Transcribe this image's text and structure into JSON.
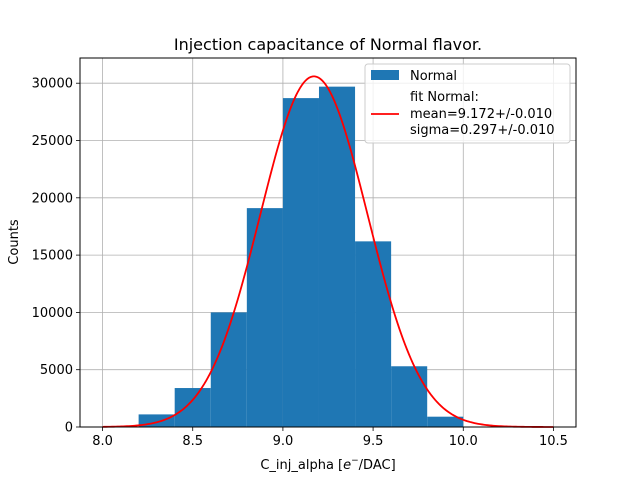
{
  "chart_data": {
    "type": "histogram",
    "title": "Injection capacitance of Normal flavor.",
    "xlabel": "C_inj_alpha [e⁻/DAC]",
    "xlabel_parts": {
      "prefix": "C_inj_alpha [",
      "symbol": "e",
      "superscript": "−",
      "suffix": "/DAC]"
    },
    "ylabel": "Counts",
    "xlim": [
      7.875,
      10.625
    ],
    "ylim": [
      0,
      32200
    ],
    "xticks": [
      8.0,
      8.5,
      9.0,
      9.5,
      10.0,
      10.5
    ],
    "xtick_labels": [
      "8.0",
      "8.5",
      "9.0",
      "9.5",
      "10.0",
      "10.5"
    ],
    "yticks": [
      0,
      5000,
      10000,
      15000,
      20000,
      25000,
      30000
    ],
    "ytick_labels": [
      "0",
      "5000",
      "10000",
      "15000",
      "20000",
      "25000",
      "30000"
    ],
    "grid": true,
    "legend_position": "top-right",
    "series": [
      {
        "name": "Normal",
        "kind": "histogram",
        "color": "#1f77b4",
        "bins": [
          {
            "x0": 8.2,
            "x1": 8.4,
            "count": 1100
          },
          {
            "x0": 8.4,
            "x1": 8.6,
            "count": 3400
          },
          {
            "x0": 8.6,
            "x1": 8.8,
            "count": 10000
          },
          {
            "x0": 8.8,
            "x1": 9.0,
            "count": 19100
          },
          {
            "x0": 9.0,
            "x1": 9.2,
            "count": 28700
          },
          {
            "x0": 9.2,
            "x1": 9.4,
            "count": 29700
          },
          {
            "x0": 9.4,
            "x1": 9.6,
            "count": 16200
          },
          {
            "x0": 9.6,
            "x1": 9.8,
            "count": 5300
          },
          {
            "x0": 9.8,
            "x1": 10.0,
            "count": 900
          }
        ]
      },
      {
        "name": "fit Normal:",
        "kind": "gaussian-fit",
        "color": "#ff0000",
        "mean": 9.172,
        "sigma": 0.297,
        "amplitude": 30600,
        "x_range": [
          8.0,
          10.5
        ]
      }
    ],
    "legend": [
      {
        "label": "Normal",
        "series": 0
      },
      {
        "label": "fit Normal:",
        "series": 1
      },
      {
        "label": "mean=9.172+/-0.010",
        "series": 1
      },
      {
        "label": "sigma=0.297+/-0.010",
        "series": 1
      }
    ]
  }
}
